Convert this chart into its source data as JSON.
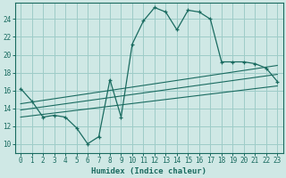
{
  "xlabel": "Humidex (Indice chaleur)",
  "background_color": "#cfe8e5",
  "grid_color": "#9eccc8",
  "line_color": "#1a6b60",
  "xlim": [
    -0.5,
    23.5
  ],
  "ylim": [
    9.0,
    25.8
  ],
  "xticks": [
    0,
    1,
    2,
    3,
    4,
    5,
    6,
    7,
    8,
    9,
    10,
    11,
    12,
    13,
    14,
    15,
    16,
    17,
    18,
    19,
    20,
    21,
    22,
    23
  ],
  "yticks": [
    10,
    12,
    14,
    16,
    18,
    20,
    22,
    24
  ],
  "line1_x": [
    0,
    1,
    2,
    3,
    4,
    5,
    6,
    7,
    8,
    9,
    10,
    11,
    12,
    13,
    14,
    15,
    16,
    17,
    18,
    19,
    20,
    21,
    22,
    23
  ],
  "line1_y": [
    16.2,
    14.8,
    13.0,
    13.2,
    13.0,
    11.8,
    10.0,
    10.8,
    17.2,
    13.0,
    21.2,
    23.8,
    25.3,
    24.8,
    22.8,
    25.0,
    24.8,
    24.0,
    19.2,
    19.2,
    19.2,
    19.0,
    18.5,
    17.0
  ],
  "line2_x": [
    0,
    23
  ],
  "line2_y": [
    13.0,
    16.5
  ],
  "line3_x": [
    0,
    23
  ],
  "line3_y": [
    13.8,
    17.8
  ],
  "line4_x": [
    0,
    23
  ],
  "line4_y": [
    14.5,
    18.8
  ]
}
